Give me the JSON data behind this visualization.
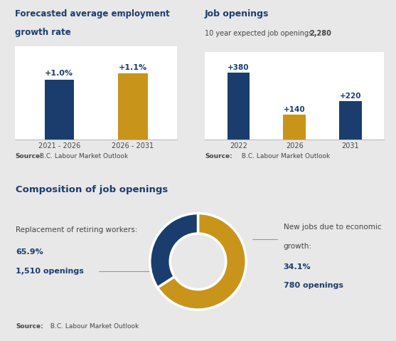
{
  "bg_color": "#e8e8e8",
  "panel_color": "#ffffff",
  "dark_blue": "#1a3d6e",
  "gold": "#c9941a",
  "text_gray": "#444444",
  "panel1_title_line1": "Forecasted average employment",
  "panel1_title_line2": "growth rate",
  "panel1_bars": [
    1.0,
    1.1
  ],
  "panel1_labels": [
    "2021 - 2026",
    "2026 - 2031"
  ],
  "panel1_bar_labels": [
    "+1.0%",
    "+1.1%"
  ],
  "panel1_colors": [
    "#1a3d6e",
    "#c9941a"
  ],
  "panel2_title": "Job openings",
  "panel2_subtitle_plain": "10 year expected job openings: ",
  "panel2_subtitle_bold": "2,280",
  "panel2_bars": [
    380,
    140,
    220
  ],
  "panel2_labels": [
    "2022",
    "2026",
    "2031"
  ],
  "panel2_bar_labels": [
    "+380",
    "+140",
    "+220"
  ],
  "panel2_colors": [
    "#1a3d6e",
    "#c9941a",
    "#1a3d6e"
  ],
  "source_bold": "Source:",
  "source_plain": " B.C. Labour Market Outlook",
  "panel3_title": "Composition of job openings",
  "pie_values": [
    65.9,
    34.1
  ],
  "pie_colors": [
    "#c9941a",
    "#1a3d6e"
  ],
  "pie_label1_line1": "Replacement of retiring workers:",
  "pie_label1_pct": "65.9%",
  "pie_label1_openings": "1,510 openings",
  "pie_label2_line1": "New jobs due to economic",
  "pie_label2_line2": "growth:",
  "pie_label2_pct": "34.1%",
  "pie_label2_openings": "780 openings"
}
